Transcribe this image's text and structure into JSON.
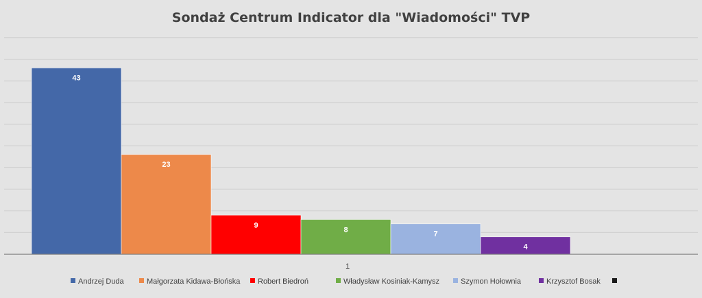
{
  "chart_data": {
    "type": "bar",
    "title": "Sondaż Centrum Indicator dla \"Wiadomości\" TVP",
    "categories": [
      "1"
    ],
    "ylim": [
      0,
      50
    ],
    "grid": true,
    "legend_position": "bottom",
    "series": [
      {
        "name": "Andrzej Duda",
        "values": [
          43
        ],
        "color": "#4468a8"
      },
      {
        "name": "Małgorzata Kidawa-Błońska",
        "values": [
          23
        ],
        "color": "#ed894a"
      },
      {
        "name": "Robert Biedroń",
        "values": [
          9
        ],
        "color": "#ff0000"
      },
      {
        "name": "Władysław Kosiniak-Kamysz",
        "values": [
          8
        ],
        "color": "#70ad47"
      },
      {
        "name": "Szymon Hołownia",
        "values": [
          7
        ],
        "color": "#9ab3e0"
      },
      {
        "name": "Krzysztof Bosak",
        "values": [
          4
        ],
        "color": "#7030a0"
      },
      {
        "name": "",
        "values": [
          0
        ],
        "color": "#1a1a1a"
      }
    ]
  }
}
